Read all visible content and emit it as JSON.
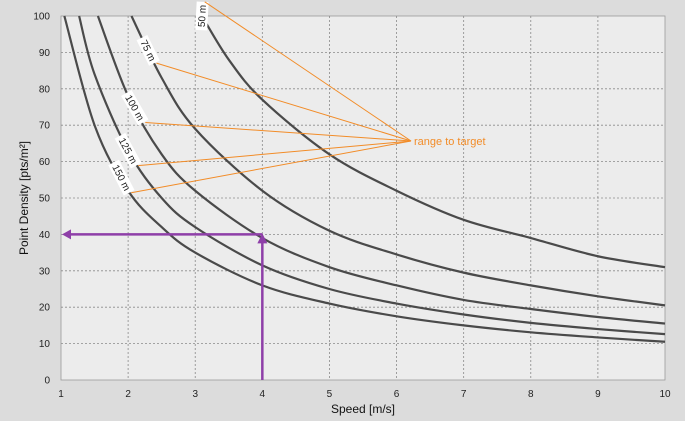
{
  "chart_data": {
    "type": "line",
    "xlabel": "Speed [m/s]",
    "ylabel": "Point Density [pts/m²]",
    "xlim": [
      1,
      10
    ],
    "ylim": [
      0,
      100
    ],
    "xticks": [
      "1",
      "2",
      "3",
      "4",
      "5",
      "6",
      "7",
      "8",
      "9",
      "10"
    ],
    "yticks": [
      "0",
      "10",
      "20",
      "30",
      "40",
      "50",
      "60",
      "70",
      "80",
      "90",
      "100"
    ],
    "grid": true,
    "series": [
      {
        "name": "50 m",
        "label_at_x": 3.1,
        "x": [
          3.1,
          3.5,
          4,
          5,
          6,
          7,
          8,
          9,
          10
        ],
        "y": [
          100,
          88,
          77,
          62,
          52,
          44,
          39,
          34,
          31
        ]
      },
      {
        "name": "75 m",
        "label_at_x": 2.3,
        "x": [
          2.05,
          2.5,
          3,
          4,
          5,
          6,
          7,
          8,
          9,
          10
        ],
        "y": [
          100,
          83,
          69,
          52,
          41,
          34.5,
          29.5,
          26,
          23,
          20.5
        ]
      },
      {
        "name": "100 m",
        "label_at_x": 2.1,
        "x": [
          1.55,
          2,
          2.5,
          3,
          4,
          5,
          6,
          7,
          8,
          9,
          10
        ],
        "y": [
          100,
          78,
          62,
          52,
          39,
          31,
          26,
          22,
          19.5,
          17.3,
          15.5
        ]
      },
      {
        "name": "125 m",
        "label_at_x": 2.0,
        "x": [
          1.27,
          1.5,
          2,
          2.5,
          3,
          4,
          5,
          6,
          7,
          8,
          9,
          10
        ],
        "y": [
          100,
          84,
          63,
          50,
          42,
          31.5,
          25,
          21,
          18,
          15.7,
          14,
          12.6
        ]
      },
      {
        "name": "150 m",
        "label_at_x": 1.9,
        "x": [
          1.05,
          1.5,
          2,
          2.5,
          3,
          4,
          5,
          6,
          7,
          8,
          9,
          10
        ],
        "y": [
          100,
          70,
          52,
          42,
          35,
          26,
          21,
          17.5,
          15,
          13.1,
          11.7,
          10.5
        ]
      }
    ],
    "annotations": {
      "range_text": "range to target",
      "color": "#f28c28",
      "arrow_color": "#8e3fa8",
      "reference": {
        "speed": 4,
        "density": 40
      }
    }
  }
}
